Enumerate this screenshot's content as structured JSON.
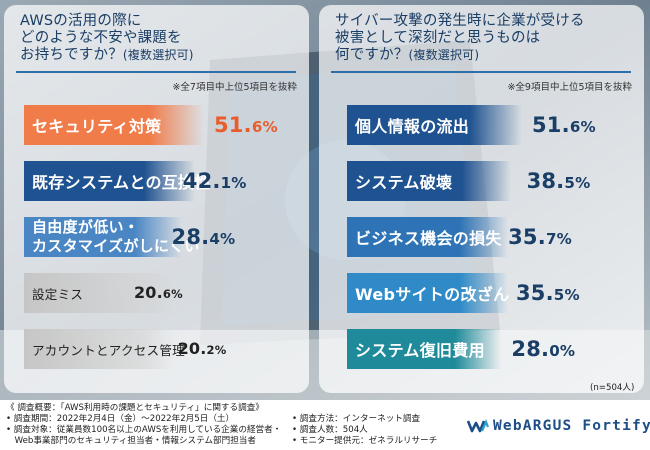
{
  "chart_data": [
    {
      "type": "bar",
      "title": "AWSの活用の際に\nどのような不安や課題を\nお持ちですか？",
      "title_note": "(複数選択可)",
      "scope_note": "※全7項目中上位5項目を抜粋",
      "categories": [
        "セキュリティ対策",
        "既存システムとの互換性",
        "自由度が低い・\nカスタマイズがしにくい",
        "設定ミス",
        "アカウントとアクセス管理"
      ],
      "values": [
        51.6,
        42.1,
        28.4,
        20.6,
        20.2
      ],
      "value_labels": [
        [
          "51.",
          "6%"
        ],
        [
          "42.",
          "1%"
        ],
        [
          "28.",
          "4%"
        ],
        [
          "20.",
          "6%"
        ],
        [
          "20.",
          "2%"
        ]
      ],
      "colors": [
        "#f07c4a",
        "#1f5290",
        "#4a86c4",
        "#c6c6c6",
        "#c6c6c6"
      ],
      "label_colors": [
        "#e95d2c",
        "#1b3e66",
        "#1b3e66",
        "#222222",
        "#222222"
      ],
      "unit": "%"
    },
    {
      "type": "bar",
      "title": "サイバー攻撃の発生時に企業が受ける\n被害として深刻だと思うものは\n何ですか？",
      "title_note": "(複数選択可)",
      "scope_note": "※全9項目中上位5項目を抜粋",
      "categories": [
        "個人情報の流出",
        "システム破壊",
        "ビジネス機会の損失",
        "Webサイトの改ざん",
        "システム復旧費用"
      ],
      "values": [
        51.6,
        38.5,
        35.7,
        35.5,
        28.0
      ],
      "value_labels": [
        [
          "51.",
          "6%"
        ],
        [
          "38.",
          "5%"
        ],
        [
          "35.",
          "7%"
        ],
        [
          "35.",
          "5%"
        ],
        [
          "28.",
          "0%"
        ]
      ],
      "colors": [
        "#1f5290",
        "#1f5290",
        "#2d73b5",
        "#2f8ac7",
        "#1f8a99"
      ],
      "label_colors": [
        "#1b3e66",
        "#1b3e66",
        "#1b3e66",
        "#1b3e66",
        "#1b3e66"
      ],
      "unit": "%"
    }
  ],
  "n_note": "(n=504人)",
  "footer": {
    "left": [
      "《 調査概要：「AWS利用時の課題とセキュリティ」に関する調査》",
      "• 調査期間：2022年2月4日（金）～2022年2月5日（土）",
      "• 調査対象：従業員数100名以上のAWSを利用している企業の経営者・",
      "　Web事業部門のセキュリティ担当者・情報システム部門担当者"
    ],
    "right": [
      "• 調査方法：インターネット調査",
      "• 調査人数：504人",
      "• モニター提供元：ゼネラルリサーチ"
    ]
  },
  "logo": {
    "text": "WebARGUS Fortify",
    "color": "#1d4e86"
  }
}
